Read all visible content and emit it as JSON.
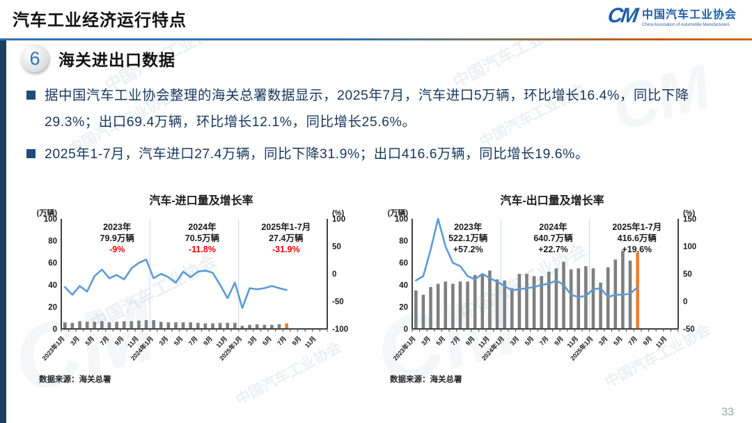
{
  "header": {
    "title": "汽车工业经济运行特点",
    "logo": {
      "mark": "CM",
      "name_cn": "中国汽车工业协会",
      "name_en": "China Association of Automobile Manufacturers"
    }
  },
  "section": {
    "number": "6",
    "title": "海关进出口数据"
  },
  "bullets": [
    "据中国汽车工业协会整理的海关总署数据显示，2025年7月，汽车进口5万辆，环比增长16.4%，同比下降29.3%；出口69.4万辆，环比增长12.1%，同比增长25.6%。",
    "2025年1-7月，汽车进口27.4万辆，同比下降31.9%；出口416.6万辆，同比增长19.6%。"
  ],
  "watermark": "中国汽车工业协会",
  "page_number": "33",
  "colors": {
    "accent_blue": "#2E74B5",
    "accent_orange": "#ED7D31",
    "navy_text": "#17375E",
    "left_bar": "#1E3E62",
    "line_blue": "#5B9BD5",
    "bar_gray": "#7F7F7F",
    "annotation_red": "#FF0000",
    "gridline": "#C5D9F1",
    "axis": "#404040"
  },
  "chart_data": [
    {
      "type": "bar+line",
      "title": "汽车-进口量及增长率",
      "source": "数据来源：海关总署",
      "left_axis_label": "(万辆)",
      "right_axis_label": "(%)",
      "left_ticks": [
        100,
        80,
        60,
        40,
        20,
        0
      ],
      "left_range": [
        0,
        100
      ],
      "right_ticks": [
        100,
        50,
        0,
        -50,
        -100
      ],
      "right_range": [
        -100,
        100
      ],
      "months_total": 36,
      "year_breaks": [
        12,
        24
      ],
      "x_tick_labels": [
        "2023年1月",
        "3月",
        "5月",
        "7月",
        "9月",
        "11月",
        "2024年1月",
        "3月",
        "5月",
        "7月",
        "9月",
        "11月",
        "2025年1月",
        "3月",
        "5月",
        "7月",
        "9月",
        "11月"
      ],
      "annotations": [
        {
          "period": "2023年",
          "volume": "79.9万辆",
          "growth": "-9%"
        },
        {
          "period": "2024年",
          "volume": "70.5万辆",
          "growth": "-11.8%"
        },
        {
          "period": "2025年1-7月",
          "volume": "27.4万辆",
          "growth": "-31.9%"
        }
      ],
      "annotation_growth_color": "#FF0000",
      "bar_series_name": "进口量(万辆)",
      "line_series_name": "同比增长率(%)",
      "bars": [
        6,
        5.5,
        7,
        6.5,
        6.5,
        7,
        6,
        6.5,
        7,
        7,
        7.5,
        8,
        8,
        6.5,
        6,
        6,
        6,
        6,
        5.5,
        5,
        5,
        5.5,
        5.5,
        5.5,
        2.8,
        3.7,
        4.2,
        3.7,
        3.7,
        4.3,
        5
      ],
      "line": [
        -24,
        -38,
        -22,
        -32,
        -4,
        8,
        -8,
        -2,
        -10,
        10,
        20,
        26,
        -8,
        0,
        -6,
        -16,
        4,
        -6,
        4,
        6,
        2,
        -20,
        -44,
        -16,
        -62,
        -26,
        -28,
        -26,
        -22,
        -26,
        -29.3
      ],
      "bar_color": "#7F7F7F",
      "last_bar_color": "#ED7D31",
      "line_color": "#5B9BD5"
    },
    {
      "type": "bar+line",
      "title": "汽车-出口量及增长率",
      "source": "数据来源：海关总署",
      "left_axis_label": "(万辆)",
      "right_axis_label": "(%)",
      "left_ticks": [
        100,
        80,
        60,
        40,
        20,
        0
      ],
      "left_range": [
        0,
        100
      ],
      "right_ticks": [
        150,
        100,
        50,
        0,
        -50
      ],
      "right_range": [
        -50,
        150
      ],
      "months_total": 36,
      "year_breaks": [
        12,
        24
      ],
      "x_tick_labels": [
        "2023年1月",
        "3月",
        "5月",
        "7月",
        "9月",
        "11月",
        "2024年1月",
        "3月",
        "5月",
        "7月",
        "9月",
        "11月",
        "2025年1月",
        "3月",
        "5月",
        "7月",
        "9月",
        "11月"
      ],
      "annotations": [
        {
          "period": "2023年",
          "volume": "522.1万辆",
          "growth": "+57.2%"
        },
        {
          "period": "2024年",
          "volume": "640.7万辆",
          "growth": "+22.7%"
        },
        {
          "period": "2025年1-7月",
          "volume": "416.6万辆",
          "growth": "+19.6%"
        }
      ],
      "annotation_growth_color": "#1a1a1a",
      "bar_series_name": "出口量(万辆)",
      "line_series_name": "同比增长率(%)",
      "bars": [
        35,
        31,
        38,
        41,
        43,
        41,
        43,
        43,
        49,
        50,
        53,
        45,
        44,
        37,
        50,
        50,
        48,
        48,
        52,
        55,
        61,
        54,
        55,
        57,
        55,
        42,
        56,
        63,
        71,
        62,
        69.4
      ],
      "line": [
        38,
        46,
        94,
        150,
        100,
        70,
        64,
        46,
        40,
        50,
        42,
        36,
        28,
        20,
        22,
        24,
        26,
        30,
        32,
        38,
        30,
        12,
        8,
        10,
        22,
        24,
        8,
        12,
        12,
        14,
        25.6
      ],
      "bar_color": "#7F7F7F",
      "last_bar_color": "#ED7D31",
      "line_color": "#5B9BD5"
    }
  ]
}
